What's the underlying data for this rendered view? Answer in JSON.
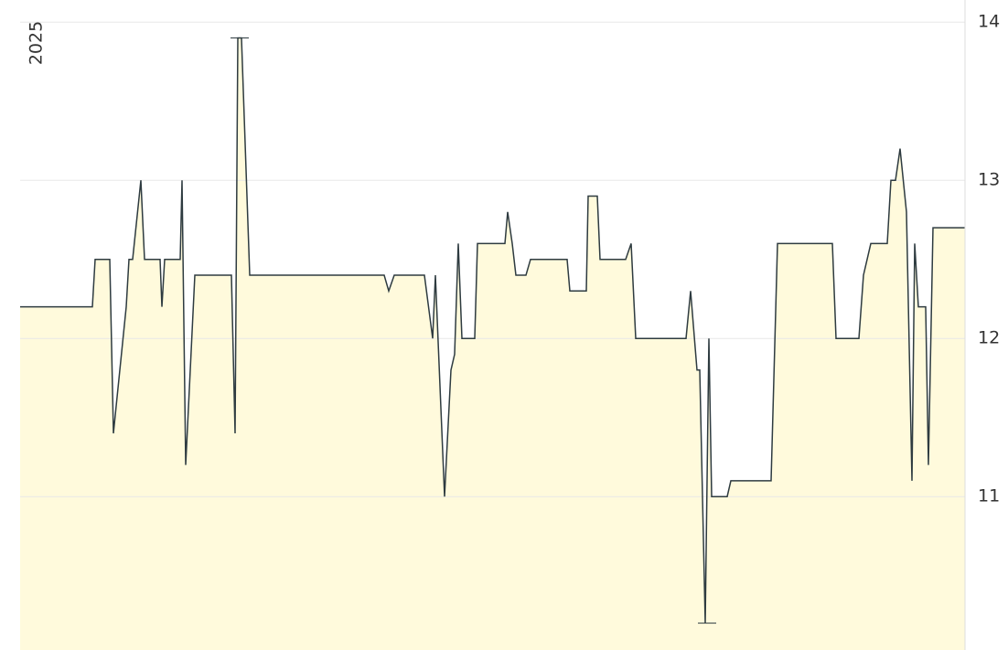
{
  "chart_data": {
    "type": "area",
    "year_label": "2025",
    "x": [
      0,
      79,
      82,
      98,
      102,
      116,
      119,
      123,
      132,
      136,
      153,
      155,
      158,
      175,
      177,
      181,
      191,
      231,
      235,
      238,
      242,
      251,
      398,
      403,
      409,
      442,
      451,
      454,
      464,
      471,
      475,
      479,
      483,
      497,
      500,
      530,
      533,
      538,
      542,
      553,
      558,
      598,
      601,
      619,
      621,
      631,
      634,
      662,
      668,
      673,
      728,
      733,
      740,
      743,
      749,
      753,
      756,
      773,
      777,
      821,
      828,
      888,
      892,
      917,
      922,
      930,
      948,
      952,
      957,
      962,
      969,
      975,
      978,
      982,
      990,
      993,
      998,
      1033
    ],
    "values": [
      12.2,
      12.2,
      12.5,
      12.5,
      11.4,
      12.2,
      12.5,
      12.5,
      13,
      12.5,
      12.5,
      12.2,
      12.5,
      12.5,
      13,
      11.2,
      12.4,
      12.4,
      11.4,
      13.9,
      13.9,
      12.4,
      12.4,
      12.3,
      12.4,
      12.4,
      12,
      12.4,
      11,
      11.8,
      11.9,
      12.6,
      12,
      12,
      12.6,
      12.6,
      12.8,
      12.6,
      12.4,
      12.4,
      12.5,
      12.5,
      12.3,
      12.3,
      12.9,
      12.9,
      12.5,
      12.5,
      12.6,
      12,
      12,
      12.3,
      11.8,
      11.8,
      10.2,
      12,
      11,
      11,
      11.1,
      11.1,
      12.6,
      12.6,
      12,
      12,
      12.4,
      12.6,
      12.6,
      13,
      13,
      13.2,
      12.8,
      11.1,
      12.6,
      12.2,
      12.2,
      11.2,
      12.7,
      12.7
    ],
    "xlim": [
      0,
      1033
    ],
    "ylim": [
      10.03,
      14.14
    ],
    "yticks": [
      11,
      12,
      13,
      14
    ],
    "line_color": "#2e3b40",
    "fill_color": "#fffadc",
    "grid": true
  }
}
